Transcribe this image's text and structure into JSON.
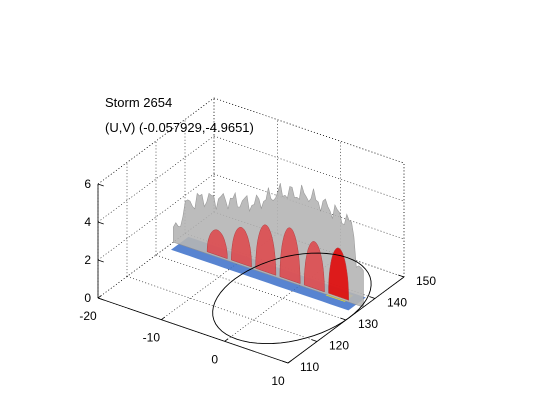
{
  "figure": {
    "title": "Storm 2654",
    "subtitle": "(U,V) (-0.057929,-4.9651)"
  },
  "chart_data": {
    "type": "3d-surface",
    "title": "Storm 2654",
    "subtitle": "(U,V) (-0.057929,-4.9651)",
    "xlabel": "",
    "ylabel": "",
    "zlabel": "",
    "axes": {
      "x": {
        "ticks": [
          -20,
          -10,
          0,
          10
        ],
        "range": [
          -20,
          10
        ]
      },
      "y": {
        "ticks": [
          110,
          120,
          130,
          140,
          150
        ],
        "range": [
          110,
          150
        ]
      },
      "z": {
        "ticks": [
          0,
          2,
          4,
          6
        ],
        "range": [
          0,
          6
        ]
      }
    },
    "grid": true,
    "legend": "none",
    "colors": {
      "shell": "#b5b5b5",
      "core": "#e0464a",
      "core_bright": "#e30000",
      "base_low": "#3b6fc9",
      "base_high": "#d7d53a"
    },
    "isosurfaces": [
      {
        "name": "outer-shell",
        "x_range": [
          -20,
          10
        ],
        "peak_heights": [
          1.6,
          2.8,
          3.2,
          3.5,
          4.6,
          4.9,
          4.5,
          3.8
        ]
      },
      {
        "name": "inner-core",
        "x_range": [
          -15,
          8
        ],
        "peak_heights": [
          1.4,
          2.0,
          2.6,
          2.9,
          2.6,
          2.7
        ]
      }
    ],
    "track_outline": {
      "shape": "closed-loop",
      "x_range": [
        -8,
        10
      ],
      "y_range": [
        112,
        150
      ]
    }
  }
}
